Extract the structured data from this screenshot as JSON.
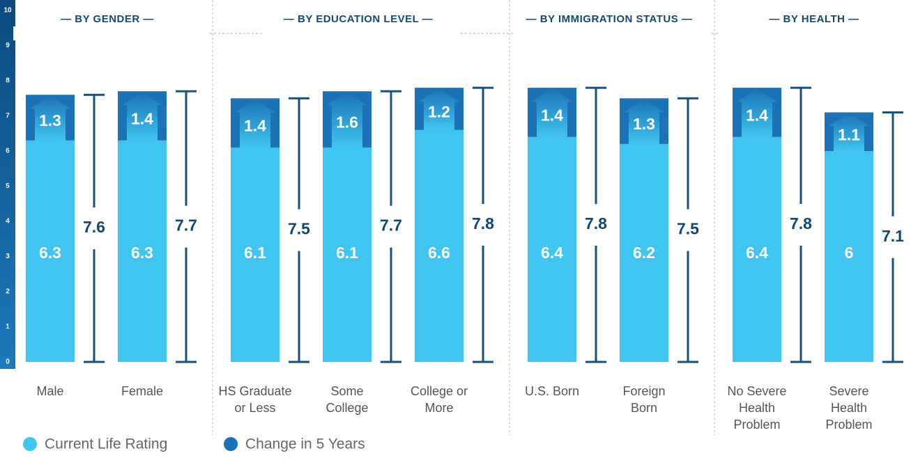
{
  "chart_data": {
    "type": "bar",
    "stacked": true,
    "ylim": [
      0,
      10
    ],
    "yticks": [
      0,
      1,
      2,
      3,
      4,
      5,
      6,
      7,
      8,
      9,
      10
    ],
    "groups": [
      {
        "title": "— BY GENDER —",
        "categories": [
          [
            "Male"
          ],
          [
            "Female"
          ]
        ]
      },
      {
        "title": "— BY EDUCATION LEVEL —",
        "categories": [
          [
            "HS Graduate",
            "or Less"
          ],
          [
            "Some",
            "College"
          ],
          [
            "College or",
            "More"
          ]
        ]
      },
      {
        "title": "— BY IMMIGRATION STATUS —",
        "categories": [
          [
            "U.S. Born"
          ],
          [
            "Foreign",
            "Born"
          ]
        ]
      },
      {
        "title": "— BY HEALTH —",
        "categories": [
          [
            "No Severe",
            "Health",
            "Problem"
          ],
          [
            "Severe",
            "Health",
            "Problem"
          ]
        ]
      }
    ],
    "series": [
      {
        "name": "Current Life Rating",
        "color": "#40c4f0",
        "values": [
          6.3,
          6.3,
          6.1,
          6.1,
          6.6,
          6.4,
          6.2,
          6.4,
          6.0
        ]
      },
      {
        "name": "Change in 5 Years",
        "color": "#1b72b6",
        "values": [
          1.3,
          1.4,
          1.4,
          1.6,
          1.2,
          1.4,
          1.3,
          1.4,
          1.1
        ]
      }
    ],
    "totals": [
      7.6,
      7.7,
      7.5,
      7.7,
      7.8,
      7.8,
      7.5,
      7.8,
      7.1
    ],
    "totals_color": "#1a4f78"
  }
}
